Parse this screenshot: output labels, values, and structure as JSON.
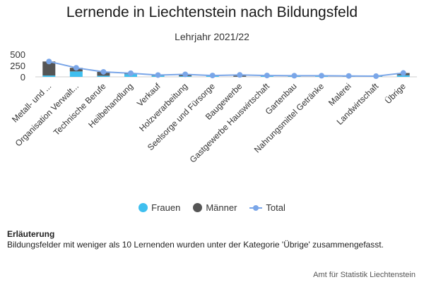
{
  "chart_data": {
    "type": "bar",
    "title": "Lernende in Liechtenstein nach Bildungsfeld",
    "subtitle": "Lehrjahr 2021/22",
    "categories": [
      "Metall- und ...",
      "Organisation Verwalt...",
      "Technische Berufe",
      "Heilbehandlung",
      "Verkauf",
      "Holzverarbeitung",
      "Seelsorge und Fürsorge",
      "Baugewerbe",
      "Gastgewerbe Hauswirtschaft",
      "Gartenbau",
      "Nahrungsmittel Getränke",
      "Malerei",
      "Landwirtschaft",
      "Übrige"
    ],
    "series": [
      {
        "name": "Frauen",
        "type": "bar",
        "color": "#3fbfef",
        "values": [
          30,
          120,
          25,
          60,
          25,
          15,
          25,
          3,
          15,
          10,
          15,
          5,
          10,
          35
        ]
      },
      {
        "name": "Männer",
        "type": "bar",
        "color": "#555555",
        "values": [
          310,
          80,
          85,
          20,
          15,
          40,
          5,
          40,
          15,
          15,
          10,
          15,
          5,
          50
        ]
      },
      {
        "name": "Total",
        "type": "line",
        "color": "#7aa6e8",
        "values": [
          340,
          200,
          110,
          80,
          40,
          55,
          30,
          43,
          30,
          25,
          25,
          20,
          15,
          85
        ]
      }
    ],
    "ylim": [
      0,
      500
    ],
    "yticks": [
      0,
      250,
      500
    ],
    "ytick_labels": [
      "0",
      "250",
      "500"
    ],
    "stacked": true,
    "grid": false,
    "legend_position": "bottom"
  },
  "legend": [
    {
      "label": "Frauen",
      "icon": "circle",
      "color": "#3fbfef"
    },
    {
      "label": "Männer",
      "icon": "circle",
      "color": "#555555"
    },
    {
      "label": "Total",
      "icon": "line-marker",
      "color": "#7aa6e8"
    }
  ],
  "note": {
    "title": "Erläuterung",
    "text": "Bildungsfelder mit weniger als 10 Lernenden wurden unter der Kategorie 'Übrige' zusammengefasst."
  },
  "source": "Amt für Statistik Liechtenstein"
}
